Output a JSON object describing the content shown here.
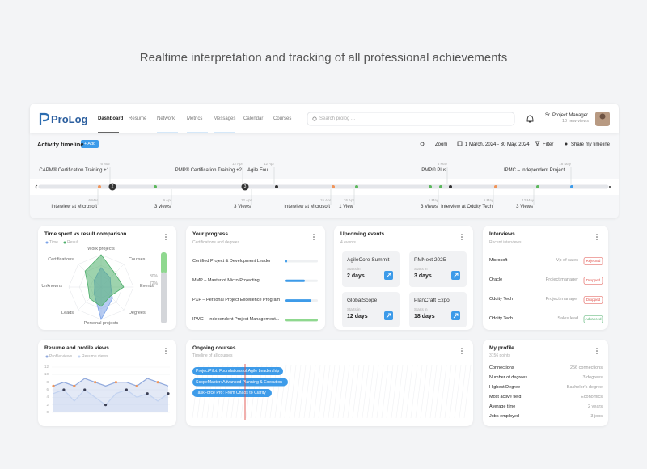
{
  "headline": "Realtime interpretation and tracking of all professional achievements",
  "app": {
    "logo": "ProLog",
    "nav": [
      "Dashboard",
      "Resume",
      "Network",
      "Metrics",
      "Messages",
      "Calendar",
      "Courses"
    ],
    "search_placeholder": "Search prolog ...",
    "user": {
      "name": "Sr. Project Manager ...",
      "views": "10 new views"
    }
  },
  "timeline": {
    "title": "Activity timeline",
    "add": "+ Add",
    "zoom": "Zoom",
    "date_range": "1 March, 2024 - 30 May, 2024",
    "filter": "Filter",
    "share": "Share my timeline",
    "top_events": [
      {
        "date": "6 Mar",
        "label": "CAPM® Certification Training +1"
      },
      {
        "date": "12 Apr",
        "label": "PMP® Certification Training +2"
      },
      {
        "date": "12 Apr",
        "label": "Agile Fou ..."
      },
      {
        "date": "6 May",
        "label": "PMP® Plus"
      },
      {
        "date": "18 May",
        "label": "IPMC – Independent Project ..."
      }
    ],
    "bottom_events": [
      {
        "date": "6 Mar",
        "label": "Interview at Microsoft"
      },
      {
        "date": "9 Apr",
        "label": "3 views"
      },
      {
        "date": "12 Apr",
        "label": "3 Views"
      },
      {
        "date": "15 Apr",
        "label": "Interview at Microsoft"
      },
      {
        "date": "26 Apr",
        "label": "1 View"
      },
      {
        "date": "1 May",
        "label": "3 Views"
      },
      {
        "date": "6 May",
        "label": "Interview at Oddity Tech"
      },
      {
        "date": "12 May",
        "label": "3 Views"
      }
    ],
    "badges": [
      "2",
      "3"
    ]
  },
  "time_spent": {
    "title": "Time spent vs result comparison",
    "axes": [
      "Work projects",
      "Courses",
      "Events",
      "Degrees",
      "Personal projects",
      "Leads",
      "Unknowns",
      "Certifications"
    ],
    "rlim": [
      0,
      10
    ],
    "series": [
      {
        "name": "Time",
        "color": "#7ba3e8",
        "values": [
          6,
          4,
          3,
          5,
          10,
          3,
          2,
          3
        ]
      },
      {
        "name": "Result",
        "color": "#4cae6a",
        "values": [
          10,
          6,
          7,
          4,
          6,
          5,
          4,
          7
        ]
      }
    ],
    "progress": [
      {
        "value": 30,
        "label": "30%",
        "color": "#8fd88f"
      },
      {
        "value": 72,
        "label": "72%",
        "color": "#d4d6da"
      }
    ]
  },
  "your_progress": {
    "title": "Your progress",
    "subtitle": "Certifications and degrees",
    "items": [
      {
        "name": "Certified Project & Development Leader",
        "value": 5,
        "color": "#3d9be9"
      },
      {
        "name": "MMP – Master of Micro Projecting",
        "value": 60,
        "color": "#3d9be9"
      },
      {
        "name": "PXP – Personal Project Excellence Program",
        "value": 80,
        "color": "#3d9be9"
      },
      {
        "name": "IPMC – Independent Project Management...",
        "value": 100,
        "color": "#8fd88f"
      }
    ]
  },
  "upcoming": {
    "title": "Upcoming events",
    "subtitle": "4 events",
    "events": [
      {
        "name": "AgileCore Summit",
        "starts": "Starts in",
        "days": "2 days"
      },
      {
        "name": "PMNext 2025",
        "starts": "Starts in",
        "days": "3 days"
      },
      {
        "name": "GlobalScope",
        "starts": "Starts in",
        "days": "12 days"
      },
      {
        "name": "PlanCraft Expo",
        "starts": "Starts in",
        "days": "18 days"
      }
    ]
  },
  "interviews": {
    "title": "Interviews",
    "subtitle": "Recent interviews",
    "rows": [
      {
        "company": "Microsoft",
        "role": "Vp of sales",
        "status": "Rejected",
        "status_color": "#e0504a"
      },
      {
        "company": "Oracle",
        "role": "Project manager",
        "status": "Dropped",
        "status_color": "#e0504a"
      },
      {
        "company": "Oddity Tech",
        "role": "Project manager",
        "status": "Dropped",
        "status_color": "#e0504a"
      },
      {
        "company": "Oddity Tech",
        "role": "Sales lead",
        "status": "Advanced",
        "status_color": "#4cae6a"
      }
    ]
  },
  "resume_views": {
    "title": "Resume and profile views",
    "ylim": [
      0,
      12
    ],
    "yticks": [
      0,
      2,
      4,
      6,
      8,
      10,
      12
    ],
    "series": [
      {
        "name": "Profile views",
        "color": "#8fa8dc",
        "values": [
          7,
          8,
          7,
          9,
          8,
          7,
          8,
          8,
          7,
          9,
          8,
          7
        ]
      },
      {
        "name": "Resume views",
        "color": "#c3d3f0",
        "values": [
          5,
          6,
          3,
          6,
          4,
          2,
          5,
          6,
          4,
          5,
          3,
          5
        ]
      }
    ]
  },
  "courses": {
    "title": "Ongoing courses",
    "subtitle": "Timeline of all courses",
    "items": [
      "ProjectPilot: Foundations of Agile Leadership",
      "ScopeMaster: Advanced Planning & Execution",
      "TaskForce Pro: From Chaos to Clarity"
    ]
  },
  "profile": {
    "title": "My profile",
    "subtitle": "3156 points",
    "rows": [
      {
        "label": "Connections",
        "value": "256 connections"
      },
      {
        "label": "Number of degrees",
        "value": "3 degrees"
      },
      {
        "label": "Highest Degree",
        "value": "Bachelor's degree"
      },
      {
        "label": "Most active field",
        "value": "Economics"
      },
      {
        "label": "Average time",
        "value": "2 years"
      },
      {
        "label": "Jobs employed",
        "value": "3 jobs"
      }
    ]
  }
}
